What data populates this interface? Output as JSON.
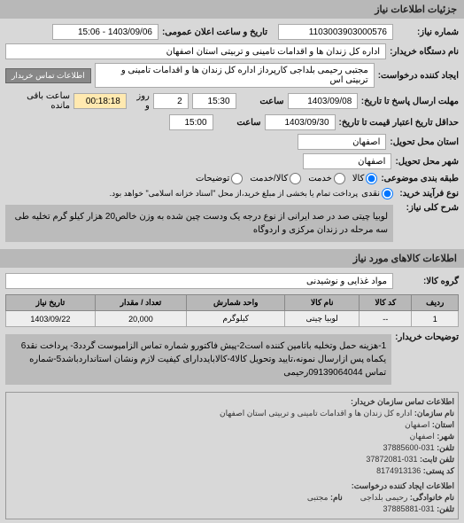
{
  "header": {
    "title": "جزئیات اطلاعات نیاز"
  },
  "info": {
    "reqNum_label": "شماره نیاز:",
    "reqNum": "1103003903000576",
    "annDate_label": "تاریخ و ساعت اعلان عمومی:",
    "annDate": "1403/09/06 - 15:06",
    "buyerDevice_label": "نام دستگاه خریدار:",
    "buyerDevice": "اداره کل زندان ها و اقدامات تامینی و تربیتی استان اصفهان",
    "createdBy_label": "ایجاد کننده درخواست:",
    "createdBy": "مجتبی رحیمی بلداجی کارپرداز اداره کل زندان ها و اقدامات تامینی و تربیتی اس",
    "contactBtn": "اطلاعات تماس خریدار",
    "deadlineSend_label": "مهلت ارسال پاسخ تا تاریخ:",
    "deadlineDate": "1403/09/08",
    "deadlineTime_label": "ساعت",
    "deadlineTime": "15:30",
    "dayWord": "روز و",
    "daysLeft": "2",
    "timeLeft": "00:18:18",
    "remainText": "ساعت باقی مانده",
    "validUntil_label": "حداقل تاریخ اعتبار قیمت تا تاریخ:",
    "validDate": "1403/09/30",
    "validTime": "15:00",
    "deliveryProv_label": "استان محل تحویل:",
    "deliveryProv": "اصفهان",
    "deliveryCity_label": "شهر محل تحویل:",
    "deliveryCity": "اصفهان",
    "saleType_label": "طبقه بندی موضوعی:",
    "processType_label": "نوع فرآیند خرید:",
    "processNote": "پرداخت تمام یا بخشی از مبلغ خرید،از محل \"اسناد خزانه اسلامی\" خواهد بود.",
    "radios": {
      "kala": "کالا",
      "khad": "خدمت",
      "naghd": "نقدی",
      "credit": "کالا/خدمت",
      "special": "توضیحات"
    }
  },
  "overview": {
    "label": "شرح کلی نیاز:",
    "text": "لوبیا چیتی صد در صد ایرانی از نوع درجه یک ودست چین شده به وزن خالص20 هزار کیلو گرم تخلیه طی سه مرحله در زندان مرکزی و اردوگاه"
  },
  "goodsSection": {
    "title": "اطلاعات کالاهای مورد نیاز",
    "group_label": "گروه کالا:",
    "group_value": "مواد غذایی و نوشیدنی"
  },
  "table": {
    "cols": [
      "ردیف",
      "کد کالا",
      "نام کالا",
      "واحد شمارش",
      "تعداد / مقدار",
      "تاریخ نیاز"
    ],
    "rows": [
      [
        "1",
        "--",
        "لوبیا چیتی",
        "کیلوگرم",
        "20,000",
        "1403/09/22"
      ]
    ]
  },
  "desc": {
    "label": "توضیحات خریدار:",
    "text": "1-هزینه حمل وتخلیه باتامین کننده است2-پیش فاکتورو شماره تماس الزامیوست گردد3- پرداخت نقد6 یکماه پس ازارسال نمونه،تایید وتحویل کالا4-کالابایددارای کیفیت لازم ونشان استانداردباشد5-شماره تماس 09139064044رحیمی"
  },
  "contact": {
    "title": "اطلاعات تماس سازمان خریدار:",
    "org_label": "نام سازمان:",
    "org": "اداره کل زندان ها و اقدامات تامینی و تربیتی استان اصفهان",
    "prov_label": "استان:",
    "prov": "اصفهان",
    "city_label": "شهر:",
    "city": "اصفهان",
    "tel_label": "تلفن:",
    "tel": "031-37885600",
    "fax_label": "تلفن ثابت:",
    "fax": "031-37872081",
    "post_label": "کد پستی:",
    "post": "8174913136",
    "creatorSection": "اطلاعات ایجاد کننده درخواست:",
    "family_label": "نام خانوادگی:",
    "family": "رحیمی بلداجی",
    "name_label": "نام:",
    "name": "مجتبی",
    "ctel_label": "تلفن:",
    "ctel": "031-37885881"
  }
}
